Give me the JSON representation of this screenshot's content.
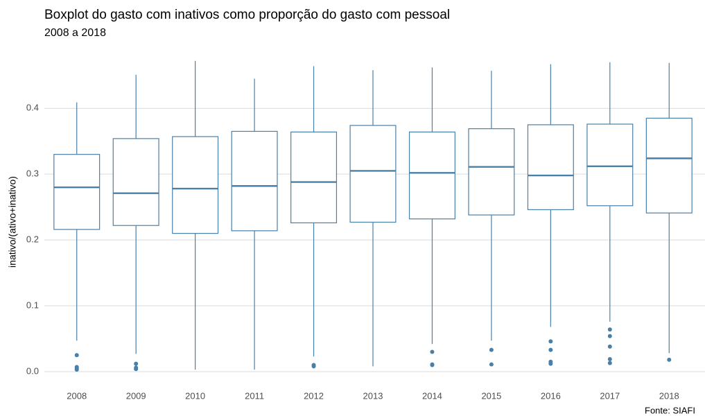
{
  "chart_data": {
    "type": "boxplot",
    "title": "Boxplot do gasto com inativos como proporção do gasto com pessoal",
    "subtitle": "2008 a 2018",
    "ylabel": "inativo/(ativo+inativo)",
    "source": "Fonte: SIAFI",
    "color": "#4a7fa8",
    "grid": true,
    "categories": [
      "2008",
      "2009",
      "2010",
      "2011",
      "2012",
      "2013",
      "2014",
      "2015",
      "2016",
      "2017",
      "2018"
    ],
    "stats": [
      {
        "min": 0.047,
        "q1": 0.216,
        "median": 0.28,
        "q3": 0.33,
        "max": 0.409,
        "outliers": [
          0.025,
          0.007,
          0.005,
          0.003
        ]
      },
      {
        "min": 0.027,
        "q1": 0.222,
        "median": 0.271,
        "q3": 0.354,
        "max": 0.451,
        "outliers": [
          0.012,
          0.006,
          0.004
        ]
      },
      {
        "min": 0.003,
        "q1": 0.21,
        "median": 0.278,
        "q3": 0.357,
        "max": 0.472,
        "outliers": []
      },
      {
        "min": 0.003,
        "q1": 0.214,
        "median": 0.282,
        "q3": 0.365,
        "max": 0.445,
        "outliers": []
      },
      {
        "min": 0.023,
        "q1": 0.226,
        "median": 0.288,
        "q3": 0.364,
        "max": 0.464,
        "outliers": [
          0.01,
          0.008
        ]
      },
      {
        "min": 0.008,
        "q1": 0.227,
        "median": 0.305,
        "q3": 0.374,
        "max": 0.458,
        "outliers": []
      },
      {
        "min": 0.042,
        "q1": 0.232,
        "median": 0.302,
        "q3": 0.364,
        "max": 0.462,
        "outliers": [
          0.03,
          0.011,
          0.01
        ]
      },
      {
        "min": 0.047,
        "q1": 0.238,
        "median": 0.311,
        "q3": 0.369,
        "max": 0.457,
        "outliers": [
          0.033,
          0.011
        ]
      },
      {
        "min": 0.068,
        "q1": 0.246,
        "median": 0.298,
        "q3": 0.375,
        "max": 0.467,
        "outliers": [
          0.046,
          0.033,
          0.015,
          0.012
        ]
      },
      {
        "min": 0.076,
        "q1": 0.252,
        "median": 0.312,
        "q3": 0.376,
        "max": 0.47,
        "outliers": [
          0.064,
          0.054,
          0.038,
          0.019,
          0.013
        ]
      },
      {
        "min": 0.028,
        "q1": 0.241,
        "median": 0.324,
        "q3": 0.385,
        "max": 0.469,
        "outliers": [
          0.018
        ]
      }
    ],
    "ylim": [
      -0.02,
      0.475
    ],
    "yticks": [
      {
        "value": 0,
        "label": "0.0"
      },
      0.1,
      0.2,
      0.3,
      0.4
    ]
  }
}
